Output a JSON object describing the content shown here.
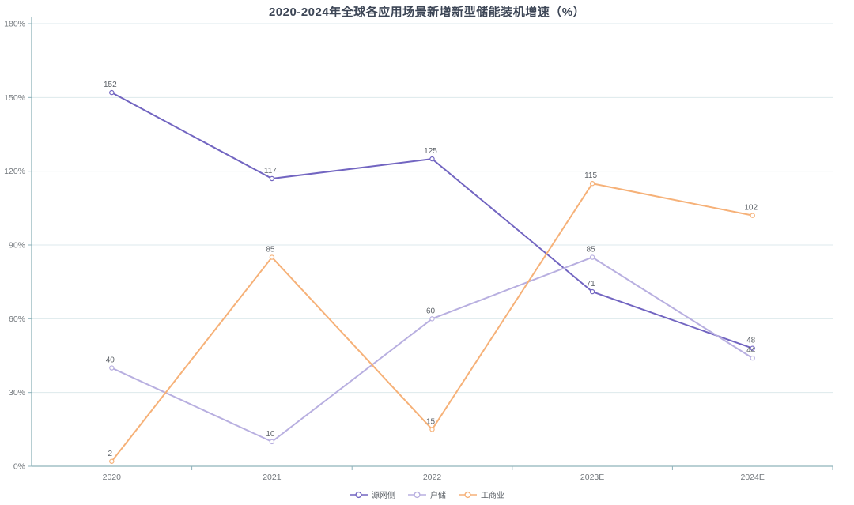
{
  "title": "2020-2024年全球各应用场景新增新型储能装机增速（%）",
  "chart_data": {
    "type": "line",
    "categories": [
      "2020",
      "2021",
      "2022",
      "2023E",
      "2024E"
    ],
    "series": [
      {
        "name": "源网侧",
        "color": "#7265c1",
        "values": [
          152,
          117,
          125,
          71,
          48
        ]
      },
      {
        "name": "户储",
        "color": "#b8afe0",
        "values": [
          40,
          10,
          60,
          85,
          44
        ]
      },
      {
        "name": "工商业",
        "color": "#f6b178",
        "values": [
          2,
          85,
          15,
          115,
          102
        ]
      }
    ],
    "title": "2020-2024年全球各应用场景新增新型储能装机增速（%）",
    "xlabel": "",
    "ylabel": "",
    "ylim": [
      0,
      180
    ],
    "y_tick_step": 30,
    "y_tick_labels": [
      "0%",
      "30%",
      "60%",
      "90%",
      "120%",
      "150%",
      "180%"
    ],
    "grid": true,
    "legend_position": "bottom",
    "point_style": "hollow-circle",
    "colors": {
      "axis": "#8fb3bb",
      "grid": "#dde9ec",
      "tick_label": "#73787d",
      "value_label": "#5d6268",
      "title": "#3d4656",
      "background": "#ffffff"
    }
  }
}
